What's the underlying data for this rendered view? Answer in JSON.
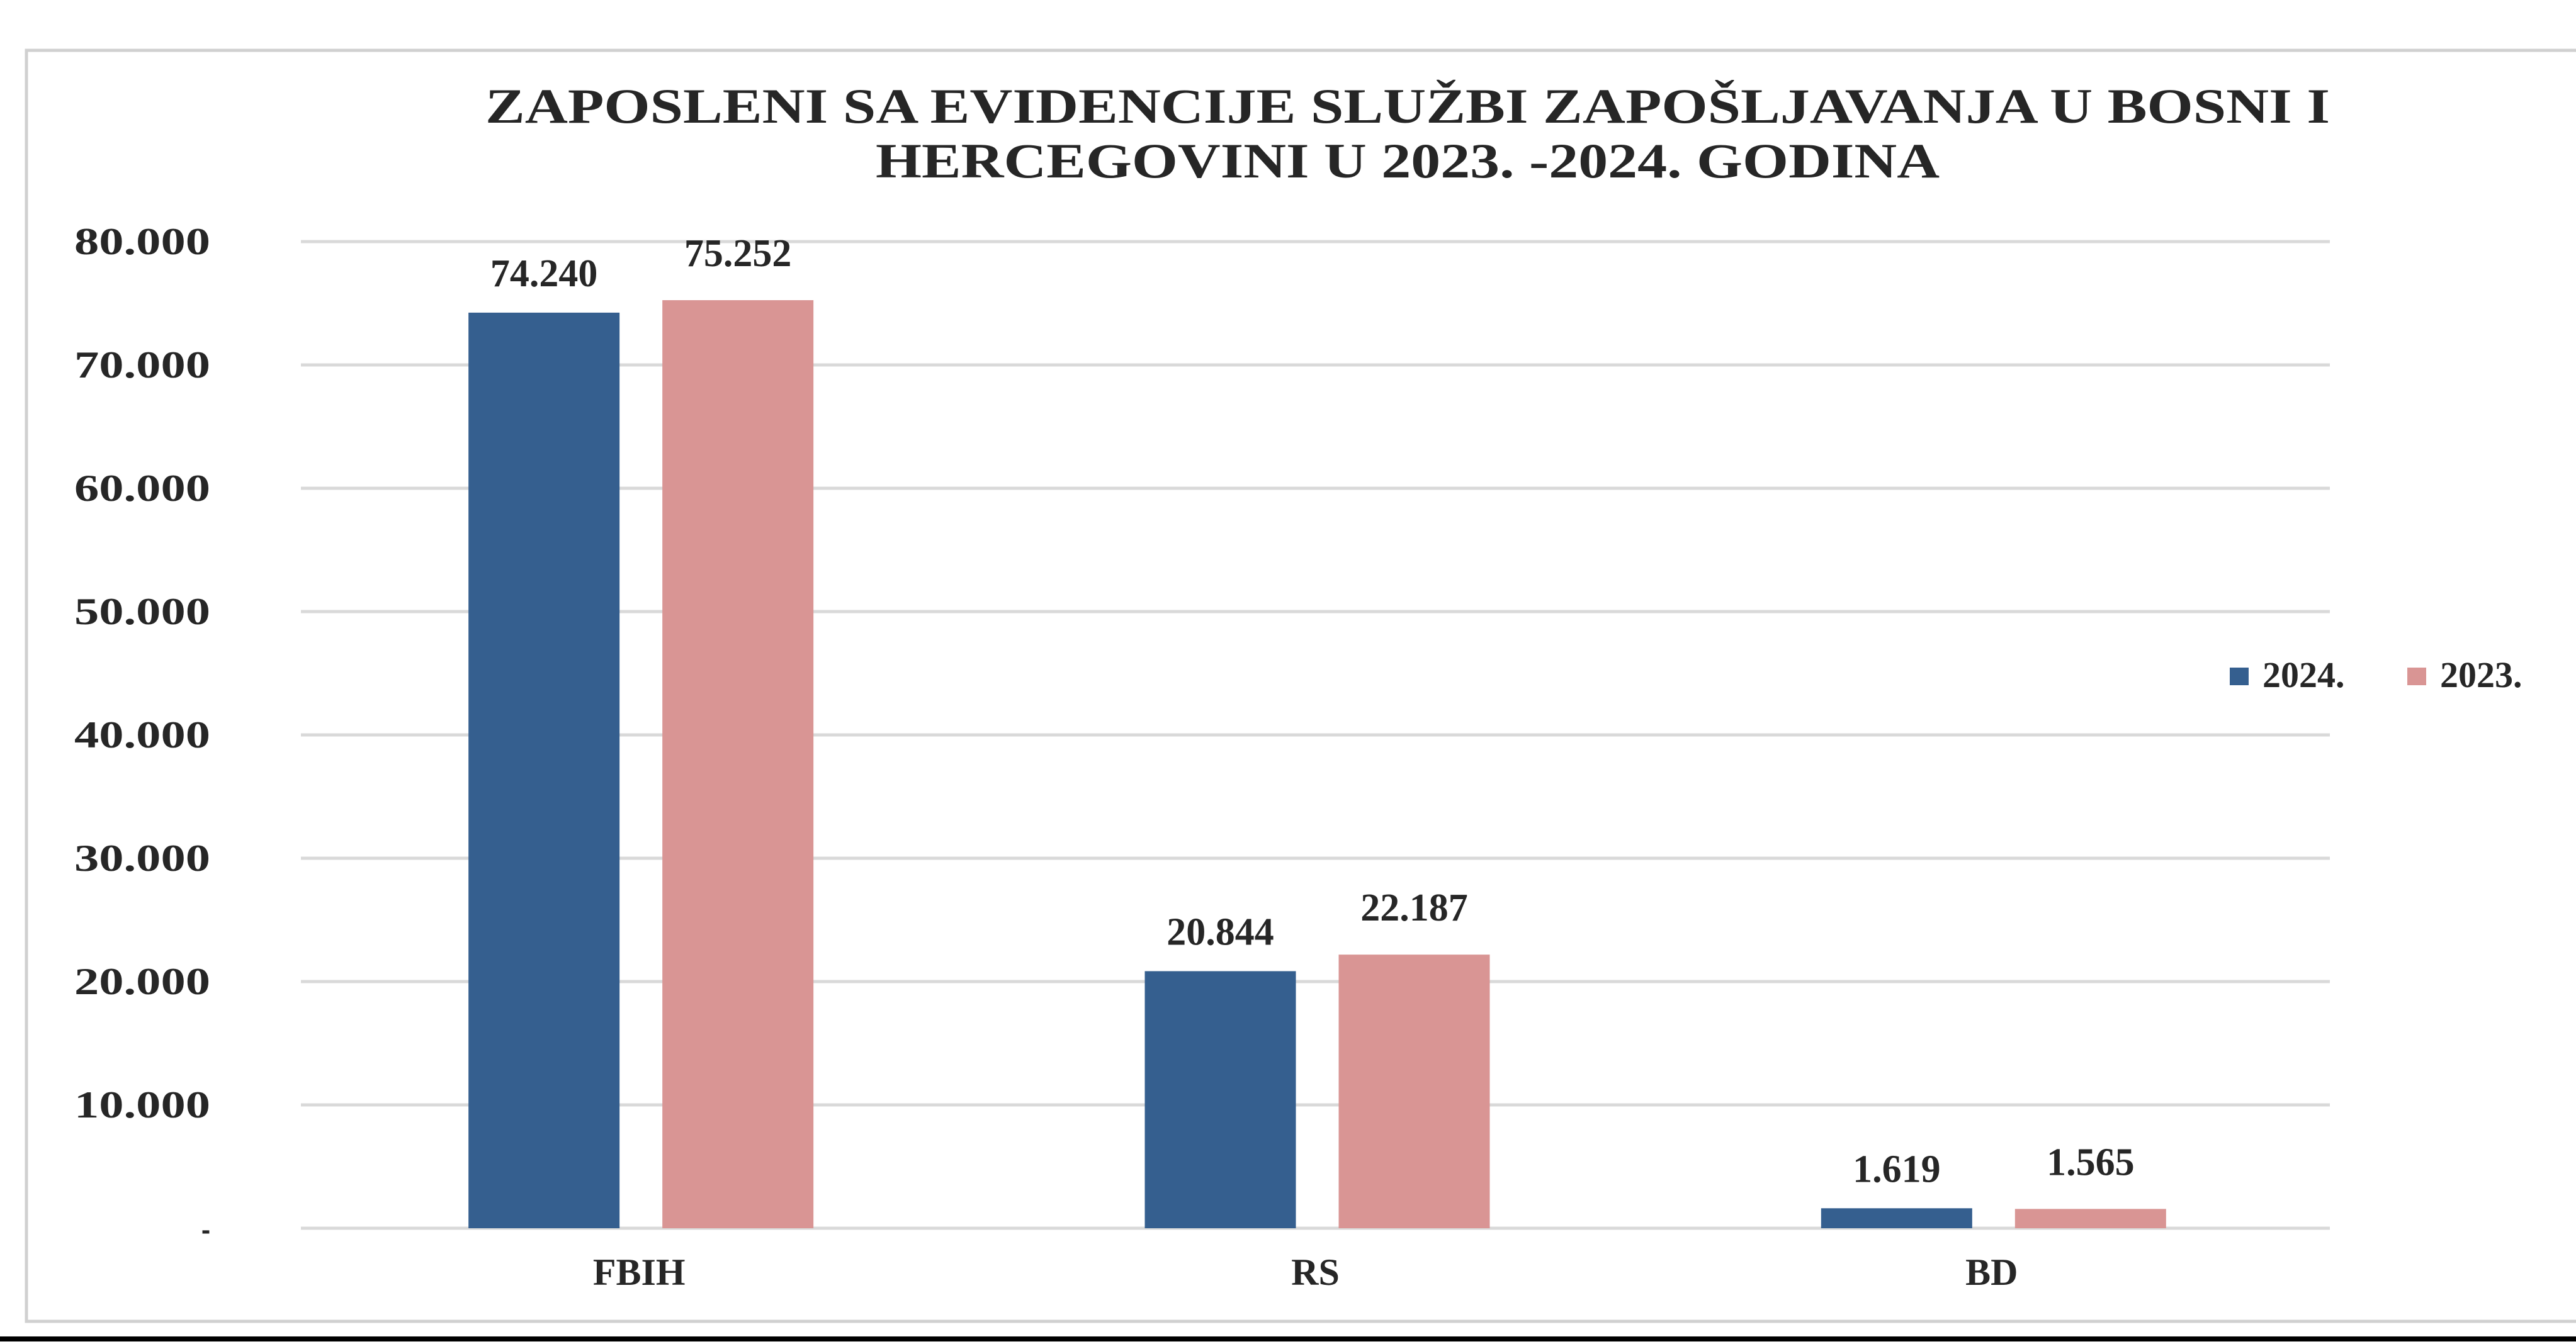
{
  "chart_data": {
    "type": "bar",
    "title_lines": [
      "ZAPOSLENI SA EVIDENCIJE SLUŽBI ZAPOŠLJAVANJA U BOSNI I",
      "HERCEGOVINI  U 2023. -2024. GODINA"
    ],
    "categories": [
      "FBIH",
      "RS",
      "BD"
    ],
    "series": [
      {
        "name": "2024.",
        "color": "#355F8F",
        "values": [
          74240,
          20844,
          1619
        ],
        "labels": [
          "74.240",
          "20.844",
          "1.619"
        ]
      },
      {
        "name": "2023.",
        "color": "#D99594",
        "values": [
          75252,
          22187,
          1565
        ],
        "labels": [
          "75.252",
          "22.187",
          "1.565"
        ]
      }
    ],
    "ylim": [
      0,
      80000
    ],
    "yticks": [
      0,
      10000,
      20000,
      30000,
      40000,
      50000,
      60000,
      70000,
      80000
    ],
    "ytick_labels": [
      "-",
      "10.000",
      "20.000",
      "30.000",
      "40.000",
      "50.000",
      "60.000",
      "70.000",
      "80.000"
    ],
    "grid": true,
    "legend_position": "right",
    "xlabel": "",
    "ylabel": ""
  }
}
